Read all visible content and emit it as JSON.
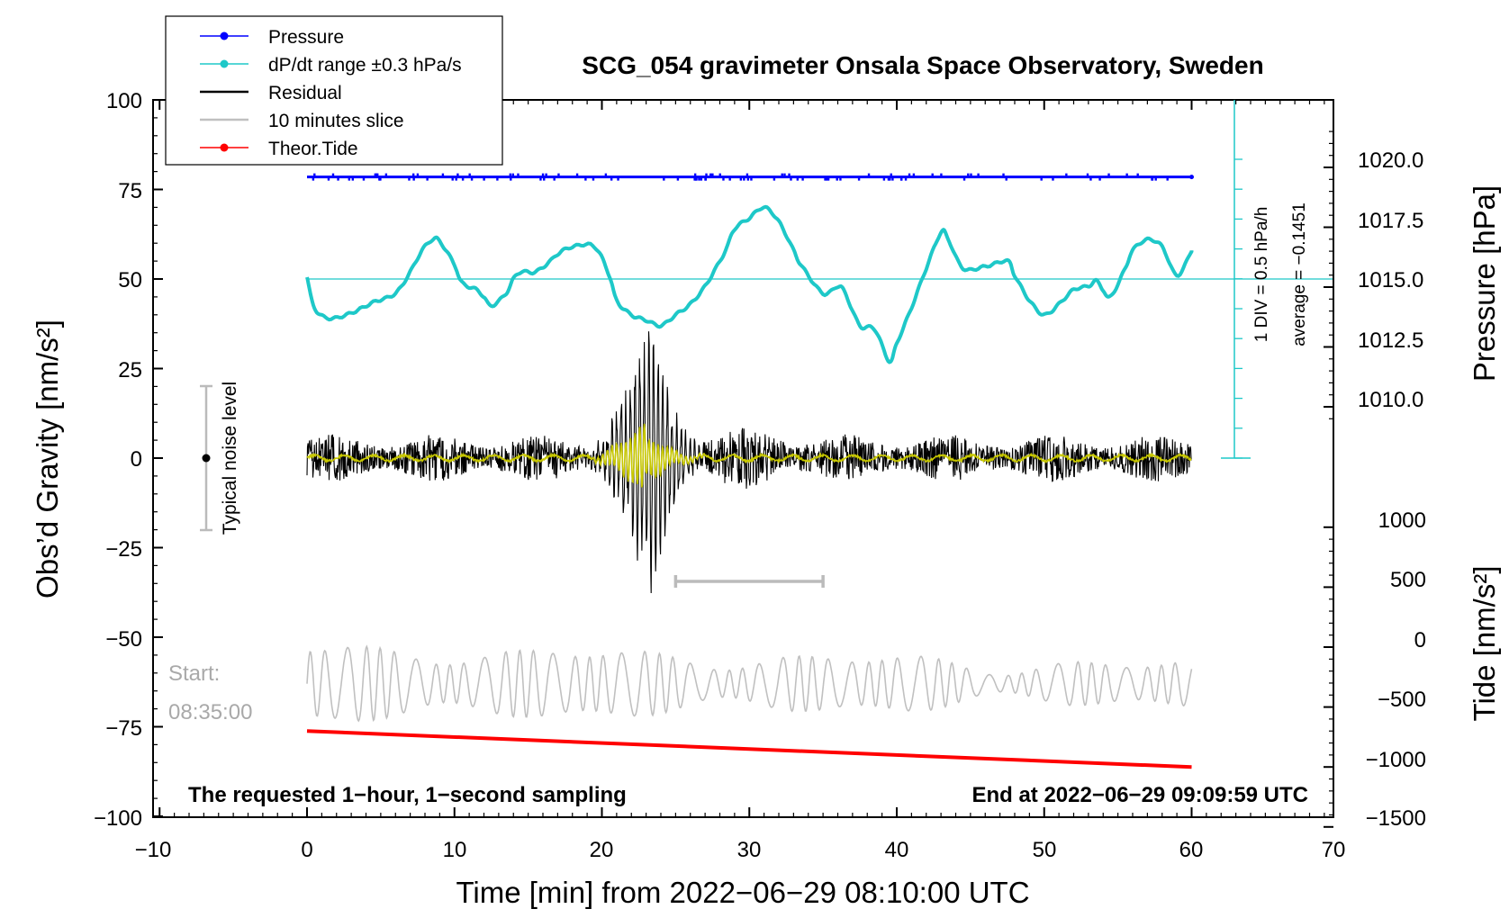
{
  "chart_data": {
    "type": "line",
    "title": "SCG_054 gravimeter Onsala Space Observatory, Sweden",
    "xlabel": "Time [min] from 2022−06−29 08:10:00 UTC",
    "ylabel_left": "Obs’d Gravity [nm/s²]",
    "ylabel_right_top": "Pressure [hPa]",
    "ylabel_right_bottom": "Tide [nm/s²]",
    "xlim": [
      -10,
      70
    ],
    "ylim_left": [
      -100,
      100
    ],
    "x_ticks": [
      "−10",
      "0",
      "10",
      "20",
      "30",
      "40",
      "50",
      "60",
      "70"
    ],
    "y_ticks_left": [
      "100",
      "75",
      "50",
      "25",
      "0",
      "−25",
      "−50",
      "−75",
      "−100"
    ],
    "pressure_ticks": [
      "1020.0",
      "1017.5",
      "1015.0",
      "1012.5",
      "1010.0"
    ],
    "tide_ticks": [
      "1000",
      "500",
      "0",
      "−500",
      "−1000",
      "−1500"
    ],
    "pressure_level_hpa": 1015.0,
    "dpdt_knots": [
      [
        0,
        50.5
      ],
      [
        0.5,
        42
      ],
      [
        1.5,
        39
      ],
      [
        3,
        40.5
      ],
      [
        4.5,
        43.5
      ],
      [
        6,
        46
      ],
      [
        7,
        52
      ],
      [
        7.8,
        58
      ],
      [
        8.5,
        61
      ],
      [
        9,
        60.5
      ],
      [
        10,
        54
      ],
      [
        10.5,
        49
      ],
      [
        11.5,
        47
      ],
      [
        12,
        45
      ],
      [
        12.5,
        42.5
      ],
      [
        13.5,
        46
      ],
      [
        14,
        50
      ],
      [
        14.5,
        52
      ],
      [
        15.5,
        52
      ],
      [
        16.5,
        55
      ],
      [
        17,
        57
      ],
      [
        18,
        59
      ],
      [
        19.5,
        59
      ],
      [
        20.5,
        51
      ],
      [
        21,
        44
      ],
      [
        22,
        40
      ],
      [
        23,
        38.5
      ],
      [
        24,
        37
      ],
      [
        25,
        40
      ],
      [
        26,
        43
      ],
      [
        27,
        48
      ],
      [
        28,
        55
      ],
      [
        28.5,
        59
      ],
      [
        29,
        64
      ],
      [
        30,
        67
      ],
      [
        31,
        70
      ],
      [
        32,
        66
      ],
      [
        33,
        58
      ],
      [
        33.5,
        54
      ],
      [
        35,
        46
      ],
      [
        36,
        48
      ],
      [
        36.5,
        46
      ],
      [
        37.5,
        37
      ],
      [
        38.5,
        36
      ],
      [
        39.5,
        27
      ],
      [
        40,
        32
      ],
      [
        41,
        42
      ],
      [
        42,
        53
      ],
      [
        43,
        63
      ],
      [
        43.5,
        61
      ],
      [
        44.5,
        53
      ],
      [
        46,
        53.5
      ],
      [
        47.5,
        55
      ],
      [
        48,
        51
      ],
      [
        49,
        44
      ],
      [
        50,
        40
      ],
      [
        51,
        43
      ],
      [
        52,
        47
      ],
      [
        53,
        48
      ],
      [
        53.5,
        49.5
      ],
      [
        54,
        47
      ],
      [
        54.5,
        45
      ],
      [
        55.5,
        53
      ],
      [
        56,
        58
      ],
      [
        57,
        61
      ],
      [
        58,
        59
      ],
      [
        59,
        51
      ],
      [
        60,
        58
      ]
    ],
    "residual_burst": {
      "start_min": 19,
      "peak_min": 23.5,
      "peak_amplitude": 34
    },
    "slice_bracket_min": [
      25,
      35
    ],
    "tide_start": -700,
    "tide_end": -1000,
    "legend": {
      "pressure": "Pressure",
      "dpdt": "dP/dt range ±0.3 hPa/s",
      "residual": "Residual",
      "slice": "10 minutes slice",
      "theor": "Theor.Tide"
    },
    "colors": {
      "pressure": "#0000ff",
      "dpdt": "#1ec8c8",
      "residual": "#000000",
      "residual_smooth": "#c8c800",
      "slice": "#c0c0c0",
      "theor": "#ff0000"
    },
    "annotations": {
      "noise_label": "Typical noise level",
      "div_label": "1 DIV = 0.5 hPa/h",
      "avg_label": "average = −0.1451",
      "start_label": "Start:",
      "start_time": "08:35:00",
      "sampling_note": "The requested 1−hour, 1−second sampling",
      "end_note": "End at 2022−06−29 09:09:59 UTC"
    }
  }
}
